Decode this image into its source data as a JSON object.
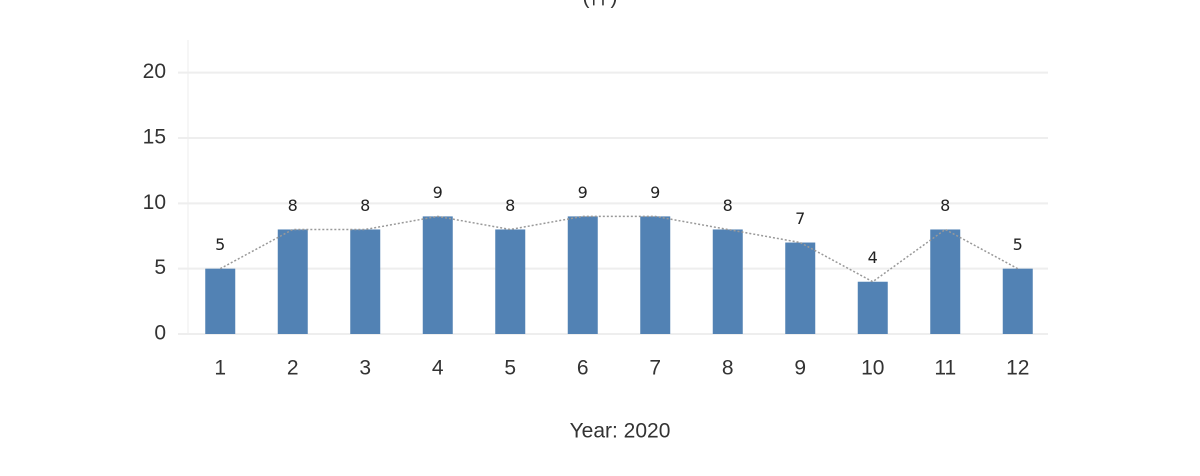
{
  "chart_data": {
    "type": "bar",
    "y_label": "(件)",
    "x_label": "Year: 2020",
    "categories": [
      "1",
      "2",
      "3",
      "4",
      "5",
      "6",
      "7",
      "8",
      "9",
      "10",
      "11",
      "12"
    ],
    "values": [
      5,
      8,
      8,
      9,
      8,
      9,
      9,
      8,
      7,
      4,
      8,
      5
    ],
    "color": "#5282b4",
    "line_color": "#999999",
    "show_line": true,
    "show_value_labels": true,
    "ylim": [
      0,
      22.5
    ],
    "yticks": [
      0,
      5,
      10,
      15,
      20
    ],
    "grid": true
  }
}
